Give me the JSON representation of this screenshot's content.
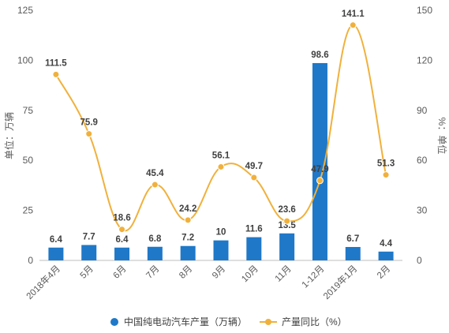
{
  "chart_data": {
    "type": "bar",
    "categories": [
      "2018年4月",
      "5月",
      "6月",
      "7月",
      "8月",
      "9月",
      "10月",
      "11月",
      "1-12月",
      "2019年1月",
      "2月"
    ],
    "series": [
      {
        "name": "中国纯电动汽车产量（万辆）",
        "type": "bar",
        "axis": "left",
        "color": "#1f78c8",
        "values": [
          6.4,
          7.7,
          6.4,
          6.8,
          7.2,
          10,
          11.6,
          13.5,
          98.6,
          6.7,
          4.4
        ]
      },
      {
        "name": "产量同比（%）",
        "type": "line",
        "axis": "right",
        "color": "#f0b13c",
        "values": [
          111.5,
          75.9,
          18.6,
          45.4,
          24.2,
          56.1,
          49.7,
          23.6,
          47.9,
          141.1,
          51.3
        ]
      }
    ],
    "ylabel_left": "单位：万辆",
    "ylabel_right": "%：单位",
    "ylim_left": [
      0,
      125
    ],
    "ylim_right": [
      0,
      150
    ],
    "yticks_left": [
      "0",
      "25",
      "50",
      "75",
      "100",
      "125"
    ],
    "yticks_right": [
      "0",
      "30",
      "60",
      "90",
      "120",
      "150"
    ],
    "grid": false,
    "legend_position": "bottom"
  }
}
